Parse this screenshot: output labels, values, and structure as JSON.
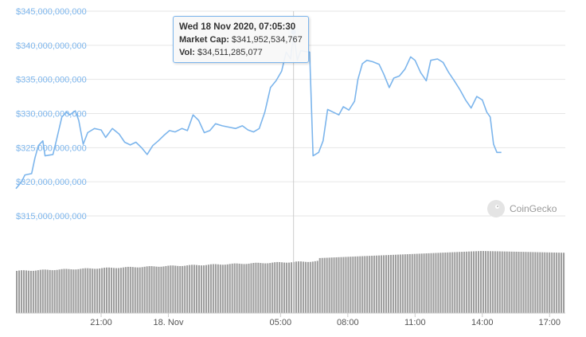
{
  "chart_data": {
    "type": "line",
    "title": "",
    "ylabel": "",
    "xlabel": "",
    "ylim": [
      315000000000,
      345000000000
    ],
    "y_ticks": [
      "$345,000,000,000",
      "$340,000,000,000",
      "$335,000,000,000",
      "$330,000,000,000",
      "$325,000,000,000",
      "$320,000,000,000",
      "$315,000,000,000"
    ],
    "y_tick_values": [
      345000000000,
      340000000000,
      335000000000,
      330000000000,
      325000000000,
      320000000000,
      315000000000
    ],
    "x_ticks": [
      "21:00",
      "18. Nov",
      "05:00",
      "08:00",
      "11:00",
      "14:00",
      "17:00"
    ],
    "x_tick_hours": [
      21,
      24,
      29,
      32,
      35,
      38,
      41
    ],
    "x_range_hours": [
      17.2,
      41.7
    ],
    "series": [
      {
        "points": [
          [
            17.2,
            319.0
          ],
          [
            17.45,
            320.0
          ],
          [
            17.6,
            321.0
          ],
          [
            17.9,
            321.2
          ],
          [
            18.05,
            323.5
          ],
          [
            18.2,
            325.3
          ],
          [
            18.4,
            326.0
          ],
          [
            18.5,
            323.8
          ],
          [
            18.85,
            324.0
          ],
          [
            19.0,
            326.0
          ],
          [
            19.25,
            329.5
          ],
          [
            19.45,
            330.2
          ],
          [
            19.6,
            329.8
          ],
          [
            19.85,
            330.4
          ],
          [
            20.0,
            329.0
          ],
          [
            20.2,
            325.5
          ],
          [
            20.4,
            327.2
          ],
          [
            20.7,
            327.8
          ],
          [
            21.0,
            327.6
          ],
          [
            21.2,
            326.5
          ],
          [
            21.5,
            327.8
          ],
          [
            21.8,
            327.0
          ],
          [
            22.05,
            325.8
          ],
          [
            22.3,
            325.4
          ],
          [
            22.55,
            325.8
          ],
          [
            22.8,
            325.0
          ],
          [
            23.05,
            324.0
          ],
          [
            23.3,
            325.3
          ],
          [
            23.55,
            326.0
          ],
          [
            23.8,
            326.8
          ],
          [
            24.05,
            327.5
          ],
          [
            24.3,
            327.3
          ],
          [
            24.6,
            327.8
          ],
          [
            24.85,
            327.5
          ],
          [
            25.1,
            329.8
          ],
          [
            25.35,
            329.0
          ],
          [
            25.6,
            327.2
          ],
          [
            25.85,
            327.5
          ],
          [
            26.1,
            328.5
          ],
          [
            26.4,
            328.2
          ],
          [
            26.7,
            328.0
          ],
          [
            27.0,
            327.8
          ],
          [
            27.3,
            328.2
          ],
          [
            27.55,
            327.6
          ],
          [
            27.8,
            327.3
          ],
          [
            28.05,
            327.8
          ],
          [
            28.3,
            330.2
          ],
          [
            28.55,
            333.8
          ],
          [
            28.8,
            334.8
          ],
          [
            29.05,
            336.2
          ],
          [
            29.25,
            339.0
          ],
          [
            29.45,
            338.0
          ],
          [
            29.58,
            341.95
          ],
          [
            29.75,
            337.8
          ],
          [
            29.9,
            339.2
          ],
          [
            30.3,
            339.0
          ],
          [
            30.45,
            323.8
          ],
          [
            30.7,
            324.3
          ],
          [
            30.9,
            326.0
          ],
          [
            31.1,
            330.6
          ],
          [
            31.35,
            330.2
          ],
          [
            31.6,
            329.8
          ],
          [
            31.8,
            331.0
          ],
          [
            32.05,
            330.5
          ],
          [
            32.3,
            331.8
          ],
          [
            32.45,
            335.0
          ],
          [
            32.65,
            337.3
          ],
          [
            32.85,
            337.8
          ],
          [
            33.1,
            337.6
          ],
          [
            33.4,
            337.2
          ],
          [
            33.6,
            335.8
          ],
          [
            33.85,
            333.8
          ],
          [
            34.05,
            335.2
          ],
          [
            34.3,
            335.5
          ],
          [
            34.55,
            336.5
          ],
          [
            34.8,
            338.3
          ],
          [
            35.0,
            337.8
          ],
          [
            35.25,
            336.0
          ],
          [
            35.5,
            334.8
          ],
          [
            35.7,
            337.8
          ],
          [
            36.0,
            338.0
          ],
          [
            36.25,
            337.5
          ],
          [
            36.5,
            336.0
          ],
          [
            36.75,
            334.8
          ],
          [
            37.0,
            333.5
          ],
          [
            37.25,
            332.0
          ],
          [
            37.5,
            330.8
          ],
          [
            37.75,
            332.5
          ],
          [
            38.0,
            332.0
          ],
          [
            38.2,
            330.2
          ],
          [
            38.35,
            329.5
          ],
          [
            38.5,
            325.5
          ],
          [
            38.65,
            324.3
          ],
          [
            38.85,
            324.3
          ]
        ]
      }
    ],
    "volume_bars": true,
    "tooltip": {
      "date": "Wed 18 Nov 2020, 07:05:30",
      "market_cap_label": "Market Cap:",
      "market_cap_value": "$341,952,534,767",
      "vol_label": "Vol:",
      "vol_value": "$34,511,285,077"
    },
    "grid": true,
    "legend": "none",
    "colors": {
      "line": "#7cb5ec",
      "volume": "#9e9e9e",
      "tooltip_border": "#7cb5ec"
    }
  },
  "watermark": {
    "text": "CoinGecko",
    "icon": "gecko-logo-icon"
  }
}
